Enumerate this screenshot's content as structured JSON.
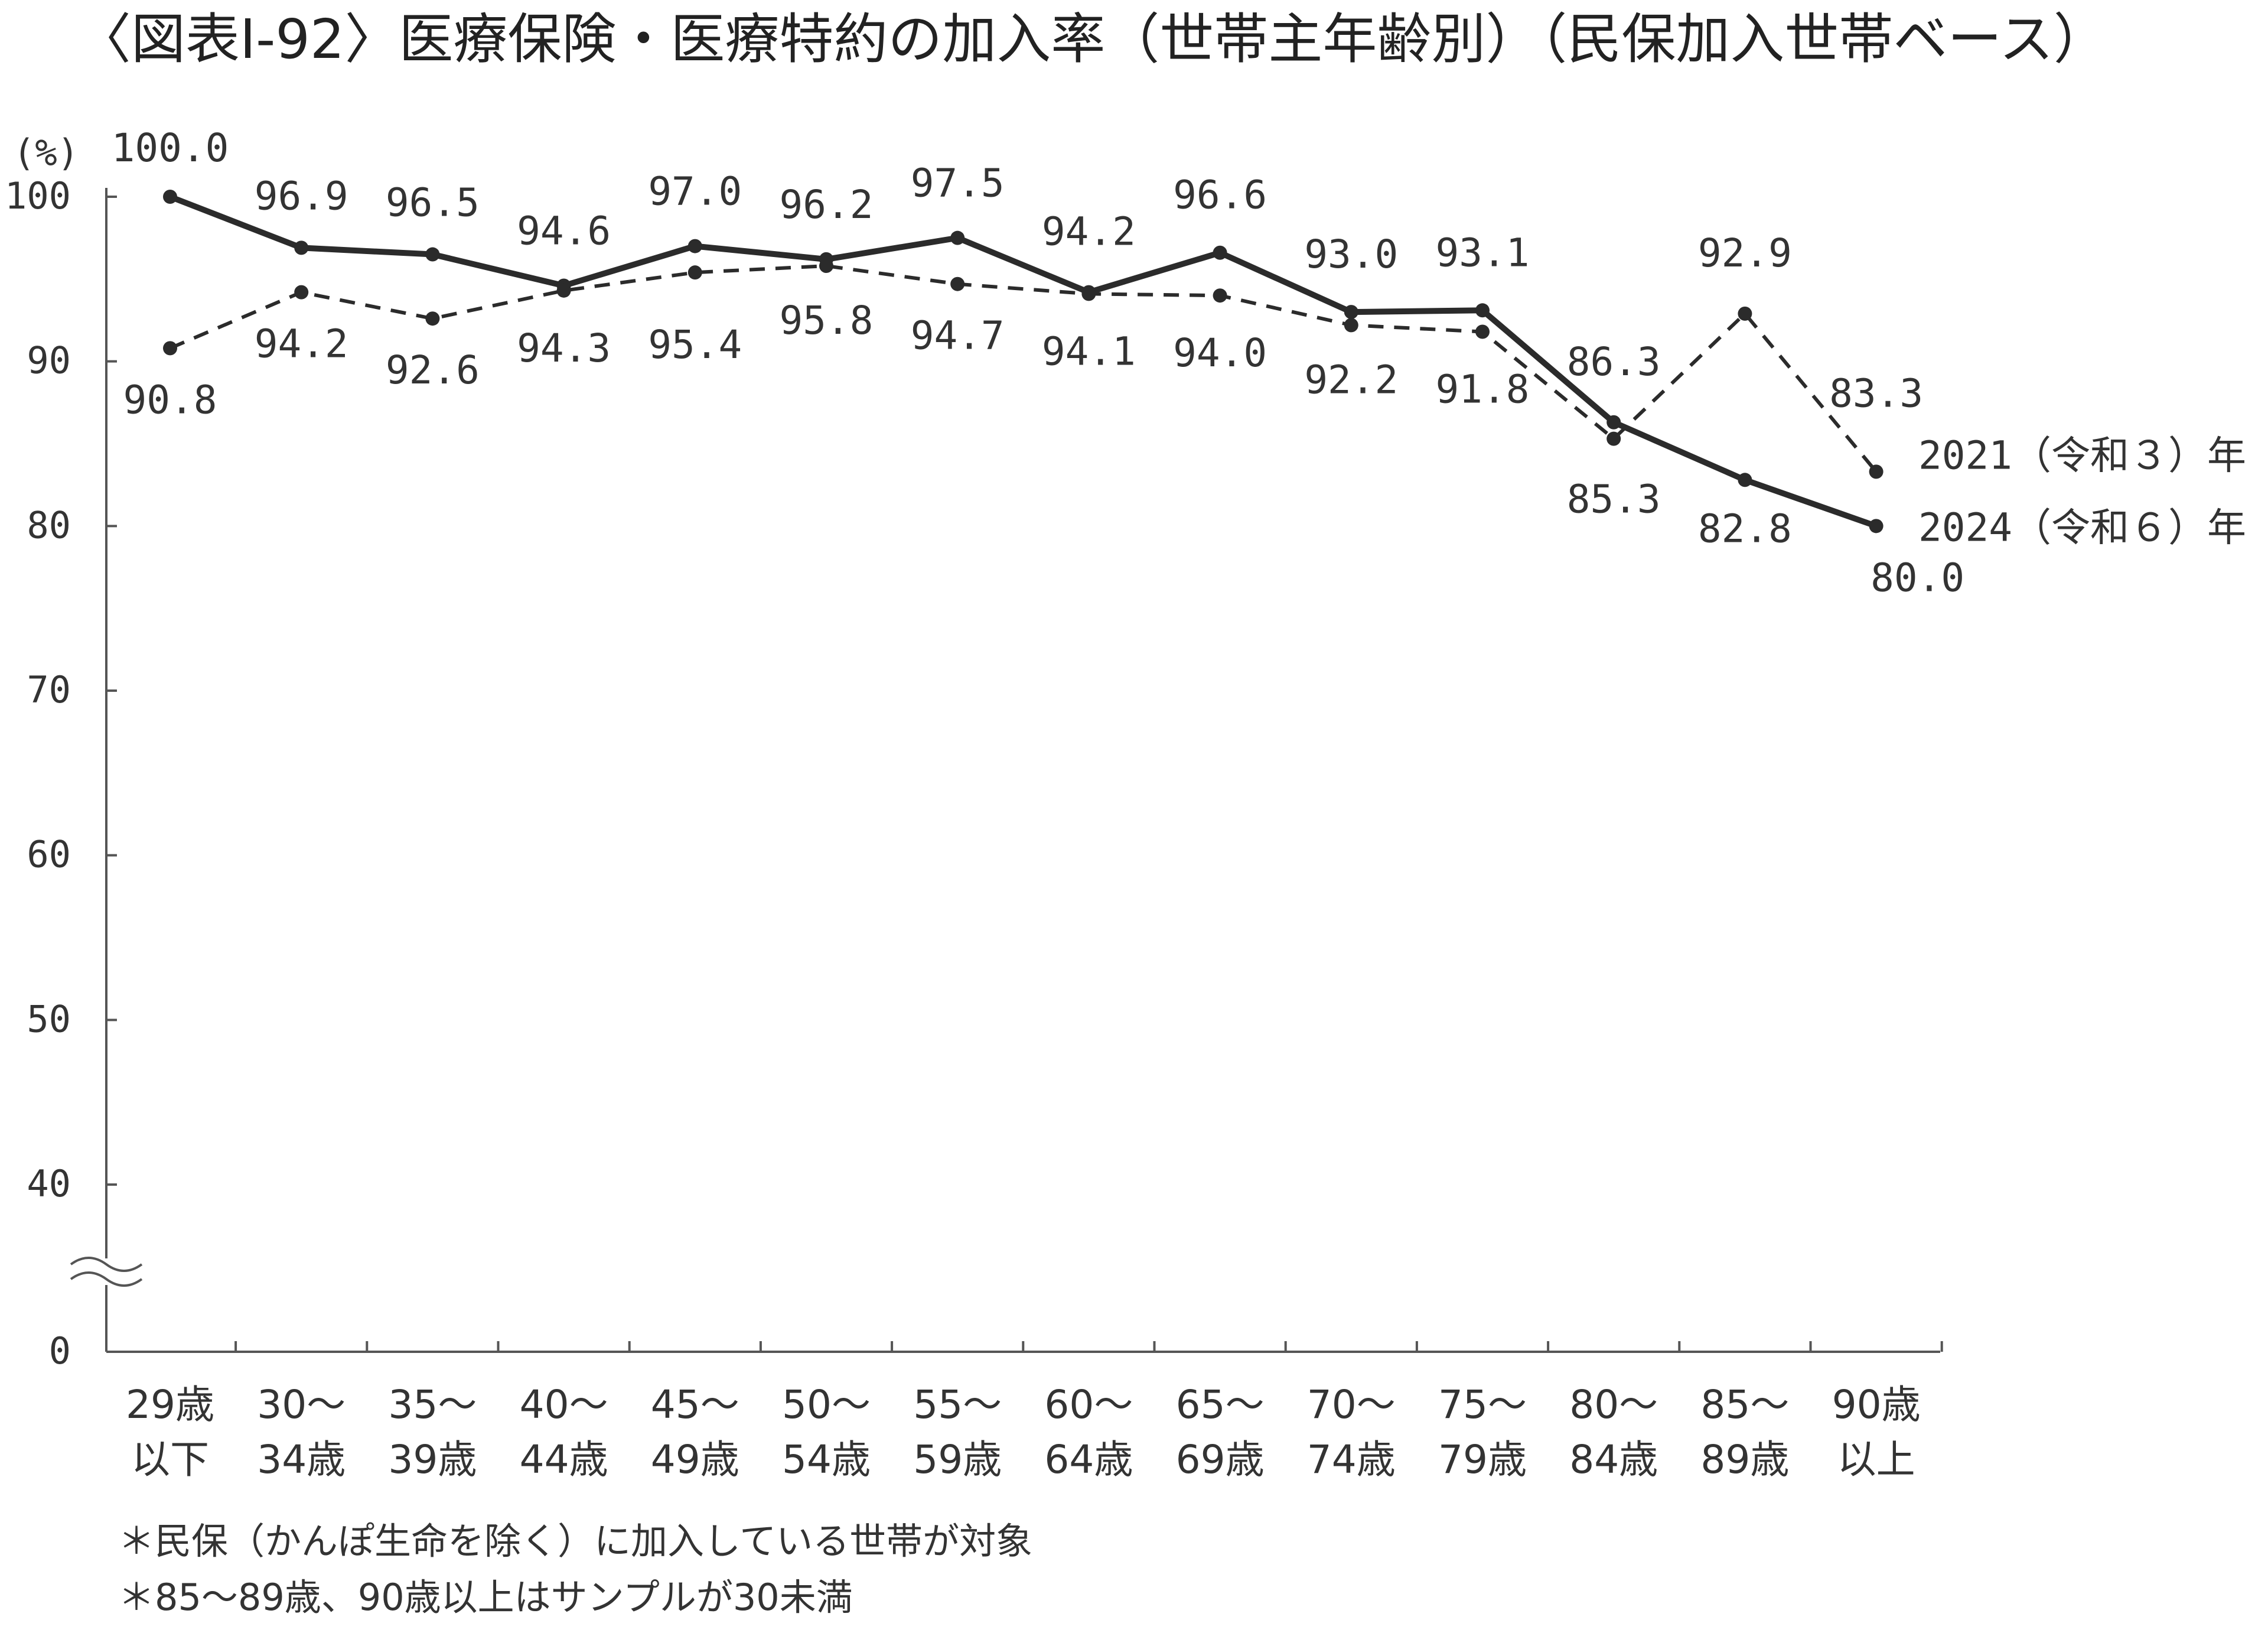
{
  "chart_data": {
    "type": "line",
    "title": "〈図表Ⅰ-92〉医療保険・医療特約の加入率（世帯主年齢別）（民保加入世帯ベース）",
    "ylabel": "(%)",
    "xlabel": "",
    "ylim": [
      0,
      100
    ],
    "axis_break": [
      0,
      35
    ],
    "yticks": [
      "100",
      "90",
      "80",
      "70",
      "60",
      "50",
      "40",
      "0"
    ],
    "categories": [
      [
        "29歳",
        "以下"
      ],
      [
        "30～",
        "34歳"
      ],
      [
        "35～",
        "39歳"
      ],
      [
        "40～",
        "44歳"
      ],
      [
        "45～",
        "49歳"
      ],
      [
        "50～",
        "54歳"
      ],
      [
        "55～",
        "59歳"
      ],
      [
        "60～",
        "64歳"
      ],
      [
        "65～",
        "69歳"
      ],
      [
        "70～",
        "74歳"
      ],
      [
        "75～",
        "79歳"
      ],
      [
        "80～",
        "84歳"
      ],
      [
        "85～",
        "89歳"
      ],
      [
        "90歳",
        "以上"
      ]
    ],
    "series": [
      {
        "name": "2024（令和６）年",
        "style": "solid",
        "values": [
          100.0,
          96.9,
          96.5,
          94.6,
          97.0,
          96.2,
          97.5,
          94.2,
          96.6,
          93.0,
          93.1,
          86.3,
          82.8,
          80.0
        ],
        "labels": [
          "100.0",
          "96.9",
          "96.5",
          "94.6",
          "97.0",
          "96.2",
          "97.5",
          "94.2",
          "96.6",
          "93.0",
          "93.1",
          "86.3",
          "82.8",
          "80.0"
        ]
      },
      {
        "name": "2021（令和３）年",
        "style": "dashed",
        "values": [
          90.8,
          94.2,
          92.6,
          94.3,
          95.4,
          95.8,
          94.7,
          94.1,
          94.0,
          92.2,
          91.8,
          85.3,
          92.9,
          83.3
        ],
        "labels": [
          "90.8",
          "94.2",
          "92.6",
          "94.3",
          "95.4",
          "95.8",
          "94.7",
          "94.1",
          "94.0",
          "92.2",
          "91.8",
          "85.3",
          "92.9",
          "83.3"
        ]
      }
    ],
    "notes": [
      "＊民保（かんぽ生命を除く）に加入している世帯が対象",
      "＊85～89歳、90歳以上はサンプルが30未満"
    ],
    "colors": {
      "line": "#2b2b2b",
      "axis": "#555555"
    }
  }
}
